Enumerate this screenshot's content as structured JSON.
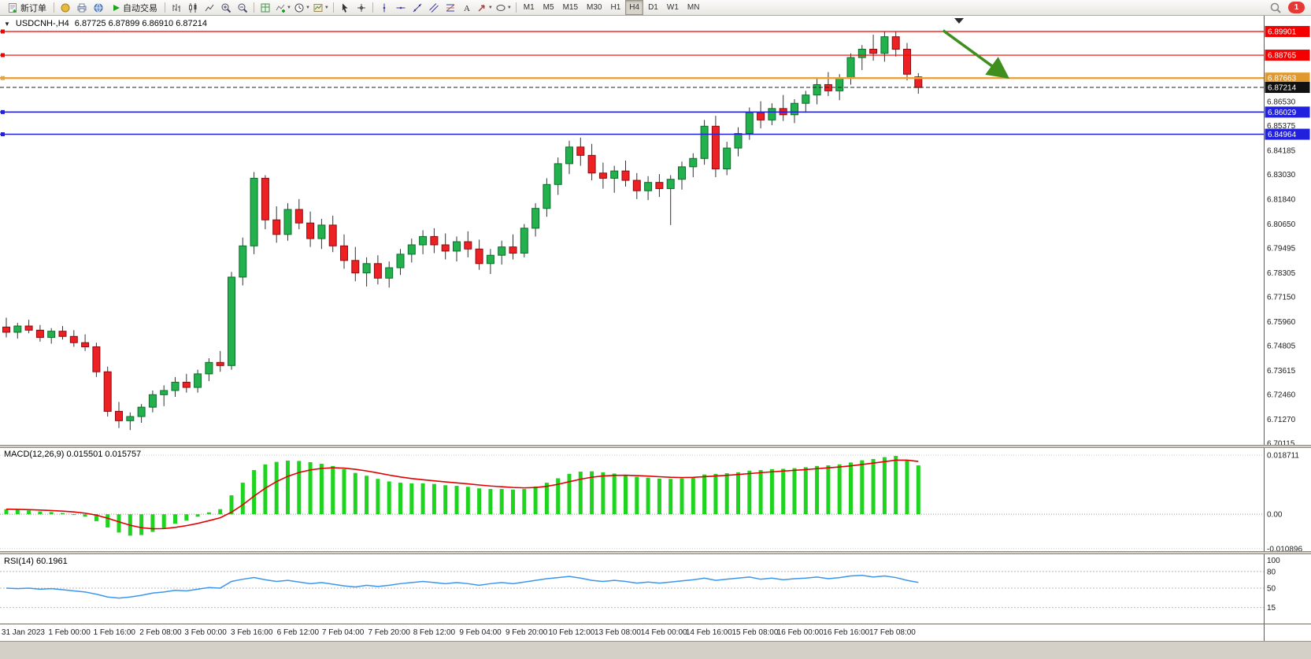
{
  "toolbar": {
    "new_order_label": "新订单",
    "autotrading_label": "自动交易",
    "timeframe_labels": [
      "M1",
      "M5",
      "M15",
      "M30",
      "H1",
      "H4",
      "D1",
      "W1",
      "MN"
    ],
    "active_timeframe": "H4",
    "notification_count": "1"
  },
  "chart": {
    "symbol_title": "USDCNH-,H4",
    "ohlc_text": "6.87725 6.87899 6.86910 6.87214",
    "price_axis_labels": [
      "6.86530",
      "6.85375",
      "6.84185",
      "6.83030",
      "6.81840",
      "6.80650",
      "6.79495",
      "6.78305",
      "6.77150",
      "6.75960",
      "6.74805",
      "6.73615",
      "6.72460",
      "6.71270",
      "6.70115"
    ],
    "hlines": [
      {
        "price": 6.89901,
        "label": "6.89901",
        "color": "#f40000",
        "badge": "#f40000",
        "width": 1.2,
        "style": "solid"
      },
      {
        "price": 6.88765,
        "label": "6.88765",
        "color": "#f40000",
        "badge": "#f40000",
        "width": 1.2,
        "style": "solid"
      },
      {
        "price": 6.87663,
        "label": "6.87663",
        "color": "#e8a33c",
        "badge": "#e0992e",
        "width": 2.4,
        "style": "solid"
      },
      {
        "price": 6.87214,
        "label": "6.87214",
        "color": "#222222",
        "badge": "#111111",
        "width": 1,
        "style": "dashed"
      },
      {
        "price": 6.86029,
        "label": "6.86029",
        "color": "#2020dd",
        "badge": "#2020dd",
        "width": 1.6,
        "style": "solid"
      },
      {
        "price": 6.84964,
        "label": "6.84964",
        "color": "#2020dd",
        "badge": "#2020dd",
        "width": 1.6,
        "style": "solid"
      }
    ],
    "time_labels": [
      {
        "i": 1.5,
        "t": "31 Jan 2023"
      },
      {
        "i": 5.6,
        "t": "1 Feb 00:00"
      },
      {
        "i": 9.6,
        "t": "1 Feb 16:00"
      },
      {
        "i": 13.7,
        "t": "2 Feb 08:00"
      },
      {
        "i": 17.7,
        "t": "3 Feb 00:00"
      },
      {
        "i": 21.8,
        "t": "3 Feb 16:00"
      },
      {
        "i": 25.9,
        "t": "6 Feb 12:00"
      },
      {
        "i": 29.9,
        "t": "7 Feb 04:00"
      },
      {
        "i": 34,
        "t": "7 Feb 20:00"
      },
      {
        "i": 38,
        "t": "8 Feb 12:00"
      },
      {
        "i": 42.1,
        "t": "9 Feb 04:00"
      },
      {
        "i": 46.2,
        "t": "9 Feb 20:00"
      },
      {
        "i": 50.2,
        "t": "10 Feb 12:00"
      },
      {
        "i": 54.3,
        "t": "13 Feb 08:00"
      },
      {
        "i": 58.4,
        "t": "14 Feb 00:00"
      },
      {
        "i": 62.4,
        "t": "14 Feb 16:00"
      },
      {
        "i": 66.5,
        "t": "15 Feb 08:00"
      },
      {
        "i": 70.5,
        "t": "16 Feb 00:00"
      },
      {
        "i": 74.6,
        "t": "16 Feb 16:00"
      },
      {
        "i": 78.7,
        "t": "17 Feb 08:00"
      }
    ],
    "candles": [
      [
        6.757,
        6.7615,
        6.752,
        6.7545
      ],
      [
        6.7545,
        6.759,
        6.7515,
        6.7575
      ],
      [
        6.7575,
        6.7605,
        6.754,
        6.7555
      ],
      [
        6.7555,
        6.758,
        6.75,
        6.752
      ],
      [
        6.752,
        6.7565,
        6.749,
        6.755
      ],
      [
        6.755,
        6.7575,
        6.751,
        6.7525
      ],
      [
        6.7525,
        6.7555,
        6.7475,
        6.7495
      ],
      [
        6.7495,
        6.7535,
        6.7455,
        6.7475
      ],
      [
        6.7475,
        6.7495,
        6.733,
        6.7355
      ],
      [
        6.7355,
        6.738,
        6.714,
        6.7165
      ],
      [
        6.7165,
        6.721,
        6.7085,
        6.712
      ],
      [
        6.712,
        6.716,
        6.7075,
        6.714
      ],
      [
        6.714,
        6.72,
        6.711,
        6.7185
      ],
      [
        6.7185,
        6.7265,
        6.716,
        6.7245
      ],
      [
        6.7245,
        6.729,
        6.719,
        6.7265
      ],
      [
        6.7265,
        6.733,
        6.7235,
        6.7305
      ],
      [
        6.7305,
        6.7345,
        6.7255,
        6.728
      ],
      [
        6.728,
        6.7365,
        6.7255,
        6.7345
      ],
      [
        6.7345,
        6.742,
        6.731,
        6.74
      ],
      [
        6.74,
        6.7455,
        6.7355,
        6.7385
      ],
      [
        6.7385,
        6.7835,
        6.7365,
        6.781
      ],
      [
        6.781,
        6.8,
        6.777,
        6.796
      ],
      [
        6.796,
        6.8315,
        6.792,
        6.8285
      ],
      [
        6.8285,
        6.83,
        6.804,
        6.8085
      ],
      [
        6.8085,
        6.815,
        6.7975,
        6.8015
      ],
      [
        6.8015,
        6.8165,
        6.7985,
        6.8135
      ],
      [
        6.8135,
        6.8185,
        6.804,
        6.807
      ],
      [
        6.807,
        6.8125,
        6.7955,
        6.7995
      ],
      [
        6.7995,
        6.809,
        6.7945,
        6.806
      ],
      [
        6.806,
        6.8105,
        6.793,
        6.796
      ],
      [
        6.796,
        6.8015,
        6.785,
        6.789
      ],
      [
        6.789,
        6.7955,
        6.779,
        6.783
      ],
      [
        6.783,
        6.7905,
        6.7765,
        6.7875
      ],
      [
        6.7875,
        6.7915,
        6.7775,
        6.7805
      ],
      [
        6.7805,
        6.7885,
        6.776,
        6.7855
      ],
      [
        6.7855,
        6.7945,
        6.782,
        6.792
      ],
      [
        6.792,
        6.7995,
        6.788,
        6.7965
      ],
      [
        6.7965,
        6.8035,
        6.792,
        6.8005
      ],
      [
        6.8005,
        6.8045,
        6.7925,
        6.7965
      ],
      [
        6.7965,
        6.802,
        6.7895,
        6.7935
      ],
      [
        6.7935,
        6.8005,
        6.7885,
        6.798
      ],
      [
        6.798,
        6.803,
        6.7905,
        6.7945
      ],
      [
        6.7945,
        6.799,
        6.7845,
        6.7875
      ],
      [
        6.7875,
        6.7945,
        6.7825,
        6.7915
      ],
      [
        6.7915,
        6.7985,
        6.787,
        6.7955
      ],
      [
        6.7955,
        6.8015,
        6.7895,
        6.7925
      ],
      [
        6.7925,
        6.8065,
        6.7905,
        6.8045
      ],
      [
        6.8045,
        6.8165,
        6.8005,
        6.814
      ],
      [
        6.814,
        6.8285,
        6.81,
        6.8255
      ],
      [
        6.8255,
        6.8385,
        6.8205,
        6.8355
      ],
      [
        6.8355,
        6.8465,
        6.8305,
        6.8435
      ],
      [
        6.8435,
        6.848,
        6.8345,
        6.8395
      ],
      [
        6.8395,
        6.845,
        6.8275,
        6.831
      ],
      [
        6.831,
        6.836,
        6.8235,
        6.8285
      ],
      [
        6.8285,
        6.8345,
        6.8215,
        6.832
      ],
      [
        6.832,
        6.837,
        6.8245,
        6.8275
      ],
      [
        6.8275,
        6.831,
        6.8185,
        6.8225
      ],
      [
        6.8225,
        6.8295,
        6.818,
        6.8265
      ],
      [
        6.8265,
        6.8305,
        6.8195,
        6.8235
      ],
      [
        6.8235,
        6.83,
        6.806,
        6.828
      ],
      [
        6.828,
        6.8365,
        6.823,
        6.834
      ],
      [
        6.834,
        6.8405,
        6.829,
        6.838
      ],
      [
        6.838,
        6.8565,
        6.835,
        6.8535
      ],
      [
        6.8535,
        6.8585,
        6.829,
        6.833
      ],
      [
        6.833,
        6.846,
        6.83,
        6.843
      ],
      [
        6.843,
        6.853,
        6.839,
        6.85
      ],
      [
        6.85,
        6.8625,
        6.847,
        6.86
      ],
      [
        6.86,
        6.8655,
        6.8525,
        6.8565
      ],
      [
        6.8565,
        6.8645,
        6.854,
        6.862
      ],
      [
        6.862,
        6.8685,
        6.856,
        6.859
      ],
      [
        6.859,
        6.8665,
        6.855,
        6.8645
      ],
      [
        6.8645,
        6.8705,
        6.86,
        6.8685
      ],
      [
        6.8685,
        6.8765,
        6.864,
        6.8735
      ],
      [
        6.8735,
        6.8795,
        6.868,
        6.8705
      ],
      [
        6.8705,
        6.8785,
        6.866,
        6.8765
      ],
      [
        6.8765,
        6.8885,
        6.8735,
        6.8865
      ],
      [
        6.8865,
        6.8925,
        6.8805,
        6.8905
      ],
      [
        6.8905,
        6.8975,
        6.885,
        6.8885
      ],
      [
        6.8885,
        6.899,
        6.8845,
        6.8965
      ],
      [
        6.8965,
        6.899,
        6.887,
        6.8905
      ],
      [
        6.8905,
        6.8935,
        6.8755,
        6.8785
      ],
      [
        6.8772,
        6.879,
        6.8691,
        6.8721
      ]
    ],
    "arrow": {
      "from_i": 83.2,
      "from_price": 6.8995,
      "to_i": 88.8,
      "to_price": 6.8775,
      "color": "#3f8f1f"
    },
    "colors": {
      "up": "#22b14c",
      "up_stroke": "#0b6e2b",
      "down": "#ed2024",
      "down_stroke": "#8e0b0f",
      "wick": "#333333"
    }
  },
  "macd": {
    "label": "MACD(12,26,9) 0.015501 0.015757",
    "axis_labels": [
      "0.018711",
      "0.00",
      "-0.010896"
    ],
    "bar_color": "#1fd41f",
    "signal_color": "#e00000",
    "values": [
      0.0016,
      0.0014,
      0.0012,
      0.0009,
      0.0007,
      0.0004,
      0.0,
      -0.0008,
      -0.0022,
      -0.0042,
      -0.0058,
      -0.0068,
      -0.0066,
      -0.0056,
      -0.0044,
      -0.003,
      -0.002,
      -0.0008,
      0.0006,
      0.0016,
      0.006,
      0.01,
      0.014,
      0.0158,
      0.0166,
      0.017,
      0.0169,
      0.0165,
      0.016,
      0.0153,
      0.0143,
      0.0131,
      0.0122,
      0.0112,
      0.0104,
      0.01,
      0.0098,
      0.0098,
      0.0096,
      0.0092,
      0.009,
      0.0087,
      0.0082,
      0.008,
      0.008,
      0.0078,
      0.008,
      0.0088,
      0.01,
      0.0114,
      0.0128,
      0.0135,
      0.0136,
      0.0133,
      0.0129,
      0.0125,
      0.0119,
      0.0116,
      0.0113,
      0.0112,
      0.0114,
      0.0118,
      0.0126,
      0.0128,
      0.013,
      0.0133,
      0.0138,
      0.014,
      0.0143,
      0.0144,
      0.0146,
      0.0149,
      0.0153,
      0.0155,
      0.0158,
      0.0164,
      0.0171,
      0.0175,
      0.0181,
      0.0185,
      0.0172,
      0.0155
    ]
  },
  "rsi": {
    "label": "RSI(14) 60.1961",
    "axis_labels": [
      "100",
      "80",
      "50",
      "15"
    ],
    "levels": [
      80,
      50,
      15
    ],
    "line_color": "#3a96ee",
    "values": [
      50,
      49,
      50,
      48,
      49,
      47,
      45,
      43,
      39,
      34,
      32,
      34,
      37,
      41,
      43,
      46,
      45,
      48,
      51,
      50,
      62,
      66,
      69,
      65,
      62,
      64,
      61,
      58,
      60,
      57,
      54,
      52,
      55,
      53,
      55,
      58,
      60,
      62,
      60,
      58,
      60,
      58,
      55,
      58,
      60,
      58,
      61,
      64,
      67,
      69,
      71,
      68,
      64,
      62,
      64,
      62,
      59,
      61,
      59,
      61,
      63,
      65,
      68,
      64,
      66,
      68,
      70,
      66,
      68,
      65,
      67,
      68,
      70,
      67,
      69,
      72,
      73,
      70,
      72,
      69,
      64,
      60.2
    ]
  }
}
